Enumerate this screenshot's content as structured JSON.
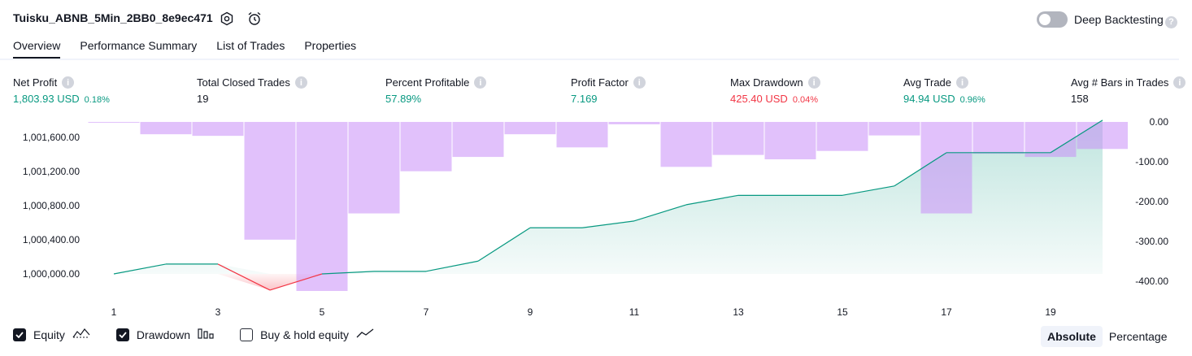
{
  "header": {
    "strategy_name": "Tuisku_ABNB_5Min_2BB0_8e9ec471",
    "settings_icon": "gear-icon",
    "alert_icon": "alarm-clock-plus-icon",
    "deep_backtesting_label": "Deep Backtesting",
    "deep_backtesting_enabled": false,
    "help_icon": "question-icon"
  },
  "tabs": [
    {
      "label": "Overview",
      "active": true
    },
    {
      "label": "Performance Summary",
      "active": false
    },
    {
      "label": "List of Trades",
      "active": false
    },
    {
      "label": "Properties",
      "active": false
    }
  ],
  "stats": [
    {
      "label": "Net Profit",
      "value": "1,803.93 USD",
      "pct": "0.18%",
      "color": "#089981"
    },
    {
      "label": "Total Closed Trades",
      "value": "19",
      "pct": "",
      "color": "#131722"
    },
    {
      "label": "Percent Profitable",
      "value": "57.89%",
      "pct": "",
      "color": "#089981"
    },
    {
      "label": "Profit Factor",
      "value": "7.169",
      "pct": "",
      "color": "#089981"
    },
    {
      "label": "Max Drawdown",
      "value": "425.40 USD",
      "pct": "0.04%",
      "color": "#f23645"
    },
    {
      "label": "Avg Trade",
      "value": "94.94 USD",
      "pct": "0.96%",
      "color": "#089981"
    },
    {
      "label": "Avg # Bars in Trades",
      "value": "158",
      "pct": "",
      "color": "#131722"
    }
  ],
  "chart_data": {
    "type": "line",
    "x": [
      1,
      2,
      3,
      4,
      5,
      6,
      7,
      8,
      9,
      10,
      11,
      12,
      13,
      14,
      15,
      16,
      17,
      18,
      19,
      20
    ],
    "x_ticks": [
      "1",
      "3",
      "5",
      "7",
      "9",
      "11",
      "13",
      "15",
      "17",
      "19"
    ],
    "left_axis": {
      "ticks": [
        "1,000,000.00",
        "1,000,400.00",
        "1,000,800.00",
        "1,001,200.00",
        "1,001,600.00"
      ],
      "ylim": [
        999800,
        1001780
      ]
    },
    "right_axis": {
      "ticks": [
        "0.00",
        "-100.00",
        "-200.00",
        "-300.00",
        "-400.00"
      ],
      "ylim": [
        -425,
        0
      ]
    },
    "series": [
      {
        "name": "Equity",
        "axis": "left",
        "color": "#089981",
        "values": [
          1000000,
          1000115,
          1000115,
          999810,
          1000000,
          1000030,
          1000030,
          1000150,
          1000540,
          1000540,
          1000620,
          1000810,
          1000920,
          1000920,
          1000920,
          1001030,
          1001420,
          1001420,
          1001420,
          1001800
        ]
      },
      {
        "name": "Drawdown",
        "axis": "right",
        "color": "#c88ef7",
        "values": [
          -1,
          -31,
          -35,
          -296,
          -425,
          -230,
          -124,
          -88,
          -31,
          -64,
          -6,
          -113,
          -83,
          -94,
          -73,
          -34,
          -230,
          -80,
          -88,
          -68
        ]
      }
    ]
  },
  "legend": [
    {
      "label": "Equity",
      "checked": true,
      "icon": "equity-line-icon"
    },
    {
      "label": "Drawdown",
      "checked": true,
      "icon": "drawdown-bars-icon"
    },
    {
      "label": "Buy & hold equity",
      "checked": false,
      "icon": "buy-hold-line-icon"
    }
  ],
  "view_mode": {
    "options": [
      "Absolute",
      "Percentage"
    ],
    "selected": "Absolute"
  }
}
